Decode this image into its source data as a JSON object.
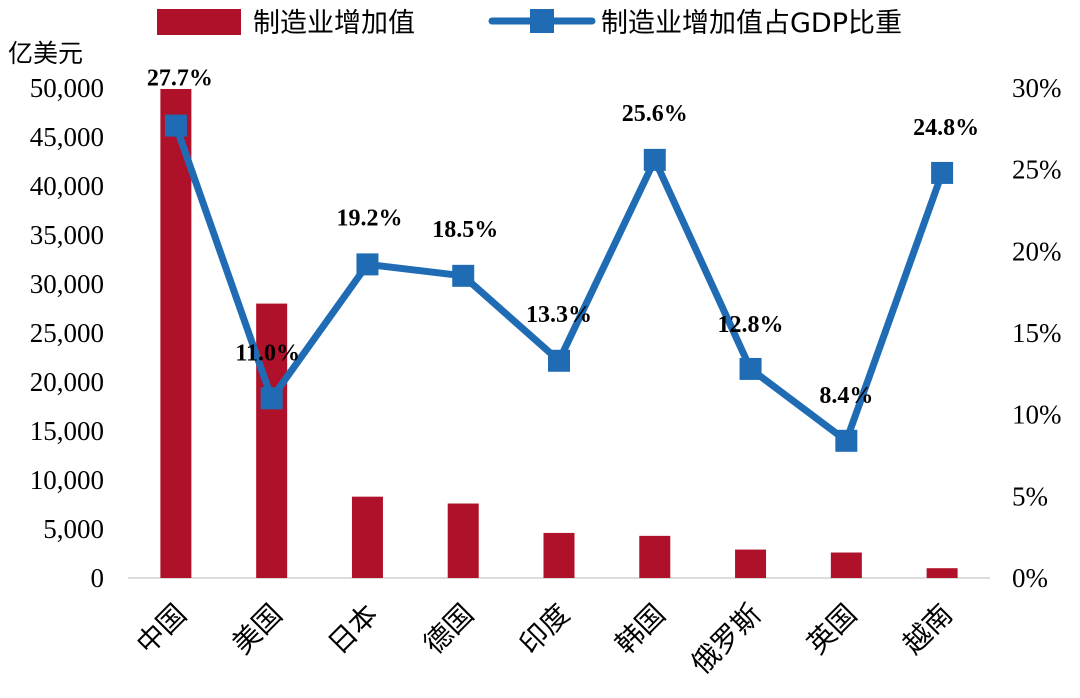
{
  "chart_data": {
    "type": "bar+line",
    "categories": [
      "中国",
      "美国",
      "日本",
      "德国",
      "印度",
      "韩国",
      "俄罗斯",
      "英国",
      "越南"
    ],
    "series": [
      {
        "name": "制造业增加值",
        "type": "bar",
        "axis": "left",
        "color": "#B0112A",
        "values": [
          49900,
          28000,
          8300,
          7600,
          4600,
          4300,
          2900,
          2600,
          1000
        ]
      },
      {
        "name": "制造业增加值占GDP比重",
        "type": "line",
        "axis": "right",
        "color": "#1F6CB5",
        "values": [
          27.7,
          11.0,
          19.2,
          18.5,
          13.3,
          25.6,
          12.8,
          8.4,
          24.8
        ],
        "labels": [
          "27.7%",
          "11.0%",
          "19.2%",
          "18.5%",
          "13.3%",
          "25.6%",
          "12.8%",
          "8.4%",
          "24.8%"
        ]
      }
    ],
    "left_axis": {
      "unit_label": "亿美元",
      "ylim": [
        0,
        50000
      ],
      "ticks": [
        0,
        5000,
        10000,
        15000,
        20000,
        25000,
        30000,
        35000,
        40000,
        45000,
        50000
      ],
      "tick_labels": [
        "0",
        "5,000",
        "10,000",
        "15,000",
        "20,000",
        "25,000",
        "30,000",
        "35,000",
        "40,000",
        "45,000",
        "50,000"
      ]
    },
    "right_axis": {
      "ylim": [
        0,
        30
      ],
      "ticks": [
        0,
        5,
        10,
        15,
        20,
        25,
        30
      ],
      "tick_labels": [
        "0%",
        "5%",
        "10%",
        "15%",
        "20%",
        "25%",
        "30%"
      ]
    },
    "legend": {
      "position": "top",
      "entries": [
        "制造业增加值",
        "制造业增加值占GDP比重"
      ]
    },
    "grid": false
  }
}
